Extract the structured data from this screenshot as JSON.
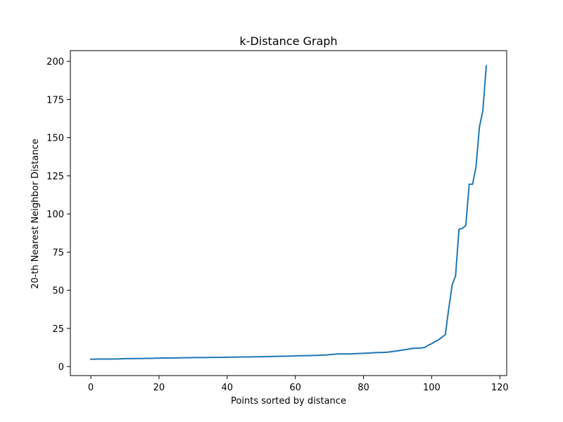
{
  "chart_data": {
    "type": "line",
    "title": "k-Distance Graph",
    "xlabel": "Points sorted by distance",
    "ylabel": "20-th Nearest Neighbor Distance",
    "xlim": [
      -6,
      122
    ],
    "ylim": [
      -5.9,
      207
    ],
    "xticks": [
      0,
      20,
      40,
      60,
      80,
      100,
      120
    ],
    "yticks": [
      0,
      25,
      50,
      75,
      100,
      125,
      150,
      175,
      200
    ],
    "grid": false,
    "series": [
      {
        "color": "#1f77b4",
        "x": [
          0,
          1,
          2,
          3,
          4,
          5,
          6,
          7,
          8,
          9,
          10,
          11,
          12,
          13,
          14,
          15,
          16,
          17,
          18,
          19,
          20,
          21,
          22,
          23,
          24,
          25,
          26,
          27,
          28,
          29,
          30,
          31,
          32,
          33,
          34,
          35,
          36,
          37,
          38,
          39,
          40,
          41,
          42,
          43,
          44,
          45,
          46,
          47,
          48,
          49,
          50,
          51,
          52,
          53,
          54,
          55,
          56,
          57,
          58,
          59,
          60,
          61,
          62,
          63,
          64,
          65,
          66,
          67,
          68,
          69,
          70,
          71,
          72,
          73,
          74,
          75,
          76,
          77,
          78,
          79,
          80,
          81,
          82,
          83,
          84,
          85,
          86,
          87,
          88,
          89,
          90,
          91,
          92,
          93,
          94,
          95,
          96,
          97,
          98,
          99,
          100,
          101,
          102,
          103,
          104,
          105,
          106,
          107,
          108,
          109,
          110,
          111,
          112,
          113,
          114,
          115,
          116
        ],
        "y": [
          4.8,
          4.8,
          4.9,
          4.9,
          4.9,
          4.9,
          4.9,
          5.0,
          5.0,
          5.1,
          5.2,
          5.2,
          5.2,
          5.3,
          5.3,
          5.3,
          5.4,
          5.4,
          5.4,
          5.5,
          5.5,
          5.6,
          5.6,
          5.6,
          5.7,
          5.7,
          5.7,
          5.8,
          5.8,
          5.8,
          5.9,
          5.9,
          5.9,
          5.9,
          5.9,
          6.0,
          6.0,
          6.0,
          6.0,
          6.1,
          6.1,
          6.2,
          6.2,
          6.2,
          6.3,
          6.3,
          6.3,
          6.3,
          6.4,
          6.4,
          6.5,
          6.5,
          6.6,
          6.6,
          6.7,
          6.7,
          6.8,
          6.8,
          6.9,
          6.9,
          7.0,
          7.1,
          7.1,
          7.2,
          7.2,
          7.3,
          7.3,
          7.4,
          7.5,
          7.6,
          7.8,
          8.0,
          8.2,
          8.3,
          8.3,
          8.3,
          8.3,
          8.4,
          8.5,
          8.6,
          8.7,
          8.8,
          8.9,
          9.1,
          9.2,
          9.2,
          9.3,
          9.4,
          9.7,
          10.0,
          10.3,
          10.7,
          11.0,
          11.4,
          11.8,
          12.0,
          12.1,
          12.2,
          12.6,
          14.0,
          15.0,
          16.4,
          17.5,
          19.2,
          21.0,
          38.0,
          53.5,
          59.5,
          90.0,
          90.5,
          92.5,
          119.5,
          119.5,
          131.0,
          157.0,
          167.5,
          197.0
        ]
      }
    ]
  }
}
